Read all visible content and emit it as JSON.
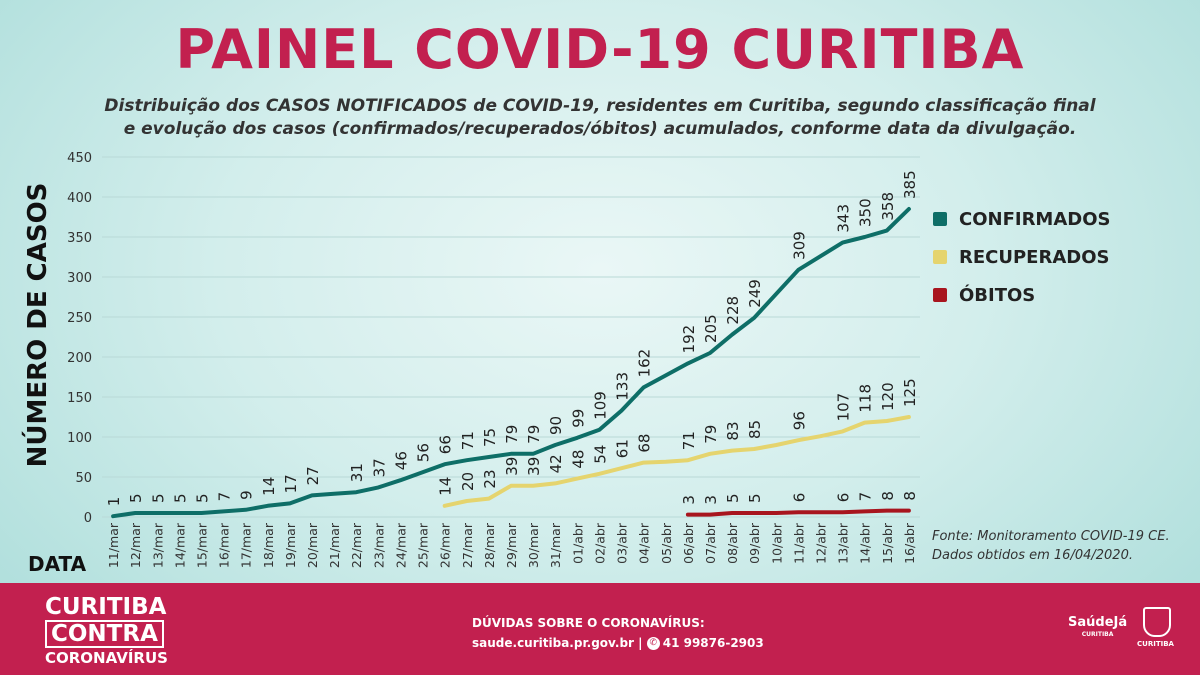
{
  "title": "PAINEL COVID-19 CURITIBA",
  "subtitle_line1": "Distribuição dos CASOS NOTIFICADOS de COVID-19, residentes em Curitiba, segundo classificação final",
  "subtitle_line2": "e evolução dos casos (confirmados/recuperados/óbitos) acumulados, conforme data da divulgação.",
  "source_line1": "Fonte: Monitoramento COVID-19 CE.",
  "source_line2": "Dados obtidos em 16/04/2020.",
  "chart_data": {
    "type": "line",
    "ylabel": "NÚMERO DE CASOS",
    "xlabel": "DATA",
    "ylim": [
      0,
      450
    ],
    "yticks": [
      0,
      50,
      100,
      150,
      200,
      250,
      300,
      350,
      400,
      450
    ],
    "grid": true,
    "legend_position": "right",
    "x": [
      "11/mar",
      "12/mar",
      "13/mar",
      "14/mar",
      "15/mar",
      "16/mar",
      "17/mar",
      "18/mar",
      "19/mar",
      "20/mar",
      "21/mar",
      "22/mar",
      "23/mar",
      "24/mar",
      "25/mar",
      "26/mar",
      "27/mar",
      "28/mar",
      "29/mar",
      "30/mar",
      "31/mar",
      "01/abr",
      "02/abr",
      "03/abr",
      "04/abr",
      "05/abr",
      "06/abr",
      "07/abr",
      "08/abr",
      "09/abr",
      "10/abr",
      "11/abr",
      "12/abr",
      "13/abr",
      "14/abr",
      "15/abr",
      "16/abr"
    ],
    "series": [
      {
        "name": "CONFIRMADOS",
        "color": "#0e6e67",
        "values": [
          1,
          5,
          5,
          5,
          5,
          7,
          9,
          14,
          17,
          27,
          29,
          31,
          37,
          46,
          56,
          66,
          71,
          75,
          79,
          79,
          90,
          99,
          109,
          133,
          162,
          177,
          192,
          205,
          228,
          249,
          279,
          309,
          326,
          343,
          350,
          358,
          385
        ],
        "labels": [
          1,
          5,
          5,
          5,
          5,
          7,
          9,
          14,
          17,
          27,
          null,
          31,
          37,
          46,
          56,
          66,
          71,
          75,
          79,
          79,
          90,
          99,
          109,
          133,
          162,
          null,
          192,
          205,
          228,
          249,
          null,
          309,
          null,
          343,
          350,
          358,
          385
        ]
      },
      {
        "name": "RECUPERADOS",
        "color": "#e5d46e",
        "values": [
          null,
          null,
          null,
          null,
          null,
          null,
          null,
          null,
          null,
          null,
          null,
          null,
          null,
          null,
          null,
          14,
          20,
          23,
          39,
          39,
          42,
          48,
          54,
          61,
          68,
          69,
          71,
          79,
          83,
          85,
          90,
          96,
          101,
          107,
          118,
          120,
          125
        ],
        "labels": [
          null,
          null,
          null,
          null,
          null,
          null,
          null,
          null,
          null,
          null,
          null,
          null,
          null,
          null,
          null,
          14,
          20,
          23,
          39,
          39,
          42,
          48,
          54,
          61,
          68,
          null,
          71,
          79,
          83,
          85,
          null,
          96,
          null,
          107,
          118,
          120,
          125
        ]
      },
      {
        "name": "ÓBITOS",
        "color": "#a8151e",
        "values": [
          null,
          null,
          null,
          null,
          null,
          null,
          null,
          null,
          null,
          null,
          null,
          null,
          null,
          null,
          null,
          null,
          null,
          null,
          null,
          null,
          null,
          null,
          null,
          null,
          null,
          null,
          3,
          3,
          5,
          5,
          5,
          6,
          6,
          6,
          7,
          8,
          8
        ],
        "labels": [
          null,
          null,
          null,
          null,
          null,
          null,
          null,
          null,
          null,
          null,
          null,
          null,
          null,
          null,
          null,
          null,
          null,
          null,
          null,
          null,
          null,
          null,
          null,
          null,
          null,
          null,
          3,
          3,
          5,
          5,
          null,
          6,
          null,
          6,
          7,
          8,
          8
        ]
      }
    ]
  },
  "footer": {
    "brand_line1": "CURITIBA",
    "brand_line2": "CONTRA",
    "brand_line3": "CORONAVÍRUS",
    "doubts_title": "DÚVIDAS SOBRE O CORONAVÍRUS:",
    "website": "saude.curitiba.pr.gov.br",
    "separator": "|",
    "phone": "41 99876-2903",
    "whatsapp_icon": "whatsapp-icon",
    "logo_saude": "SaúdeJá",
    "logo_saude_sub": "CURITIBA",
    "seal_text": "CURITIBA"
  }
}
